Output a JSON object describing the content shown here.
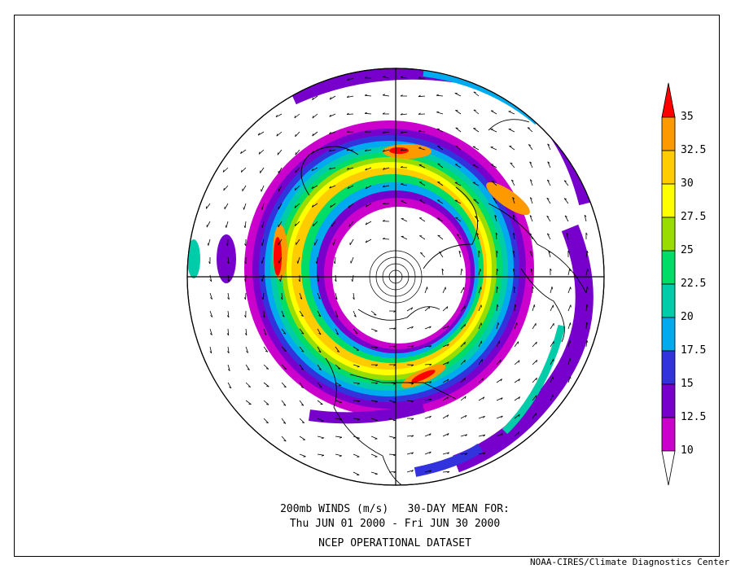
{
  "caption": {
    "line1": "200mb WINDS (m/s)   30-DAY MEAN FOR:",
    "line2": "Thu JUN 01 2000 - Fri JUN 30 2000",
    "line3": "NCEP OPERATIONAL DATASET"
  },
  "credit": "NOAA-CIRES/Climate Diagnostics Center",
  "colorbar": {
    "labels": [
      "35",
      "32.5",
      "30",
      "27.5",
      "25",
      "22.5",
      "20",
      "17.5",
      "15",
      "12.5",
      "10"
    ],
    "colors": {
      "above_35": "#ff0000",
      "32.5-35": "#ff9900",
      "30-32.5": "#ffcc00",
      "27.5-30": "#ffff00",
      "25-27.5": "#99dd00",
      "22.5-25": "#00dd66",
      "20-22.5": "#00ccaa",
      "17.5-20": "#00aaee",
      "15-17.5": "#3333dd",
      "12.5-15": "#7700cc",
      "10-12.5": "#cc00cc",
      "below_10": "#ffffff"
    }
  },
  "map": {
    "projection": "north polar stereographic",
    "field": "200mb wind speed (m/s), shaded above 10 m/s, with wind vectors",
    "contour_levels_ms": [
      10,
      12.5,
      15,
      17.5,
      20,
      22.5,
      25,
      27.5,
      30,
      32.5,
      35
    ]
  }
}
